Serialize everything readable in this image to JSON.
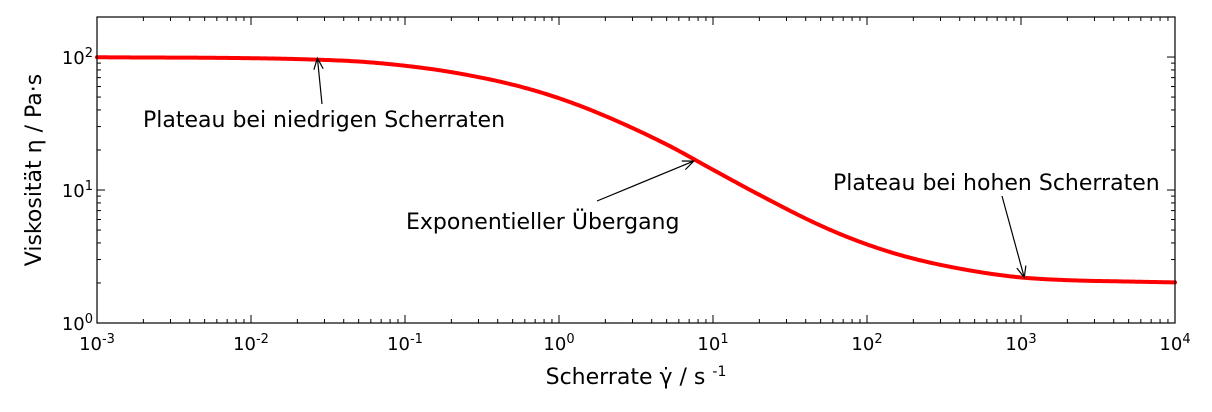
{
  "chart_data": {
    "type": "line",
    "x_scale": "log",
    "y_scale": "log",
    "xlim": [
      0.001,
      10000
    ],
    "ylim": [
      1,
      200
    ],
    "xlabel": "Scherrate γ̇ / s-1",
    "ylabel": "Viskosität η / Pa·s",
    "x_ticks": [
      {
        "value": 0.001,
        "base": "10",
        "exp": "-3"
      },
      {
        "value": 0.01,
        "base": "10",
        "exp": "-2"
      },
      {
        "value": 0.1,
        "base": "10",
        "exp": "-1"
      },
      {
        "value": 1,
        "base": "10",
        "exp": "0"
      },
      {
        "value": 10,
        "base": "10",
        "exp": "1"
      },
      {
        "value": 100,
        "base": "10",
        "exp": "2"
      },
      {
        "value": 1000,
        "base": "10",
        "exp": "3"
      },
      {
        "value": 10000,
        "base": "10",
        "exp": "4"
      }
    ],
    "y_ticks": [
      {
        "value": 1,
        "base": "10",
        "exp": "0"
      },
      {
        "value": 10,
        "base": "10",
        "exp": "1"
      },
      {
        "value": 100,
        "base": "10",
        "exp": "2"
      }
    ],
    "grid": false,
    "line_color": "#ff0000",
    "series": [
      {
        "x": [
          0.001,
          0.002,
          0.005,
          0.01,
          0.02,
          0.05,
          0.1,
          0.2,
          0.5,
          1,
          2,
          5,
          10,
          20,
          50,
          100,
          200,
          500,
          1000,
          2000,
          5000,
          10000
        ],
        "y": [
          99.6,
          99.2,
          98.8,
          98.0,
          96.5,
          92.5,
          86.0,
          77.0,
          62.0,
          49.0,
          36.0,
          22.0,
          14.2,
          9.2,
          5.4,
          3.9,
          3.05,
          2.45,
          2.2,
          2.1,
          2.05,
          2.02
        ]
      }
    ],
    "annotations": [
      {
        "text": "Plateau bei niedrigen Scherraten",
        "point": [
          0.027,
          98.0
        ]
      },
      {
        "text": "Exponentieller Übergang",
        "point": [
          7.5,
          16.5
        ]
      },
      {
        "text": "Plateau bei hohen Scherraten",
        "point": [
          1050,
          2.2
        ]
      }
    ]
  }
}
